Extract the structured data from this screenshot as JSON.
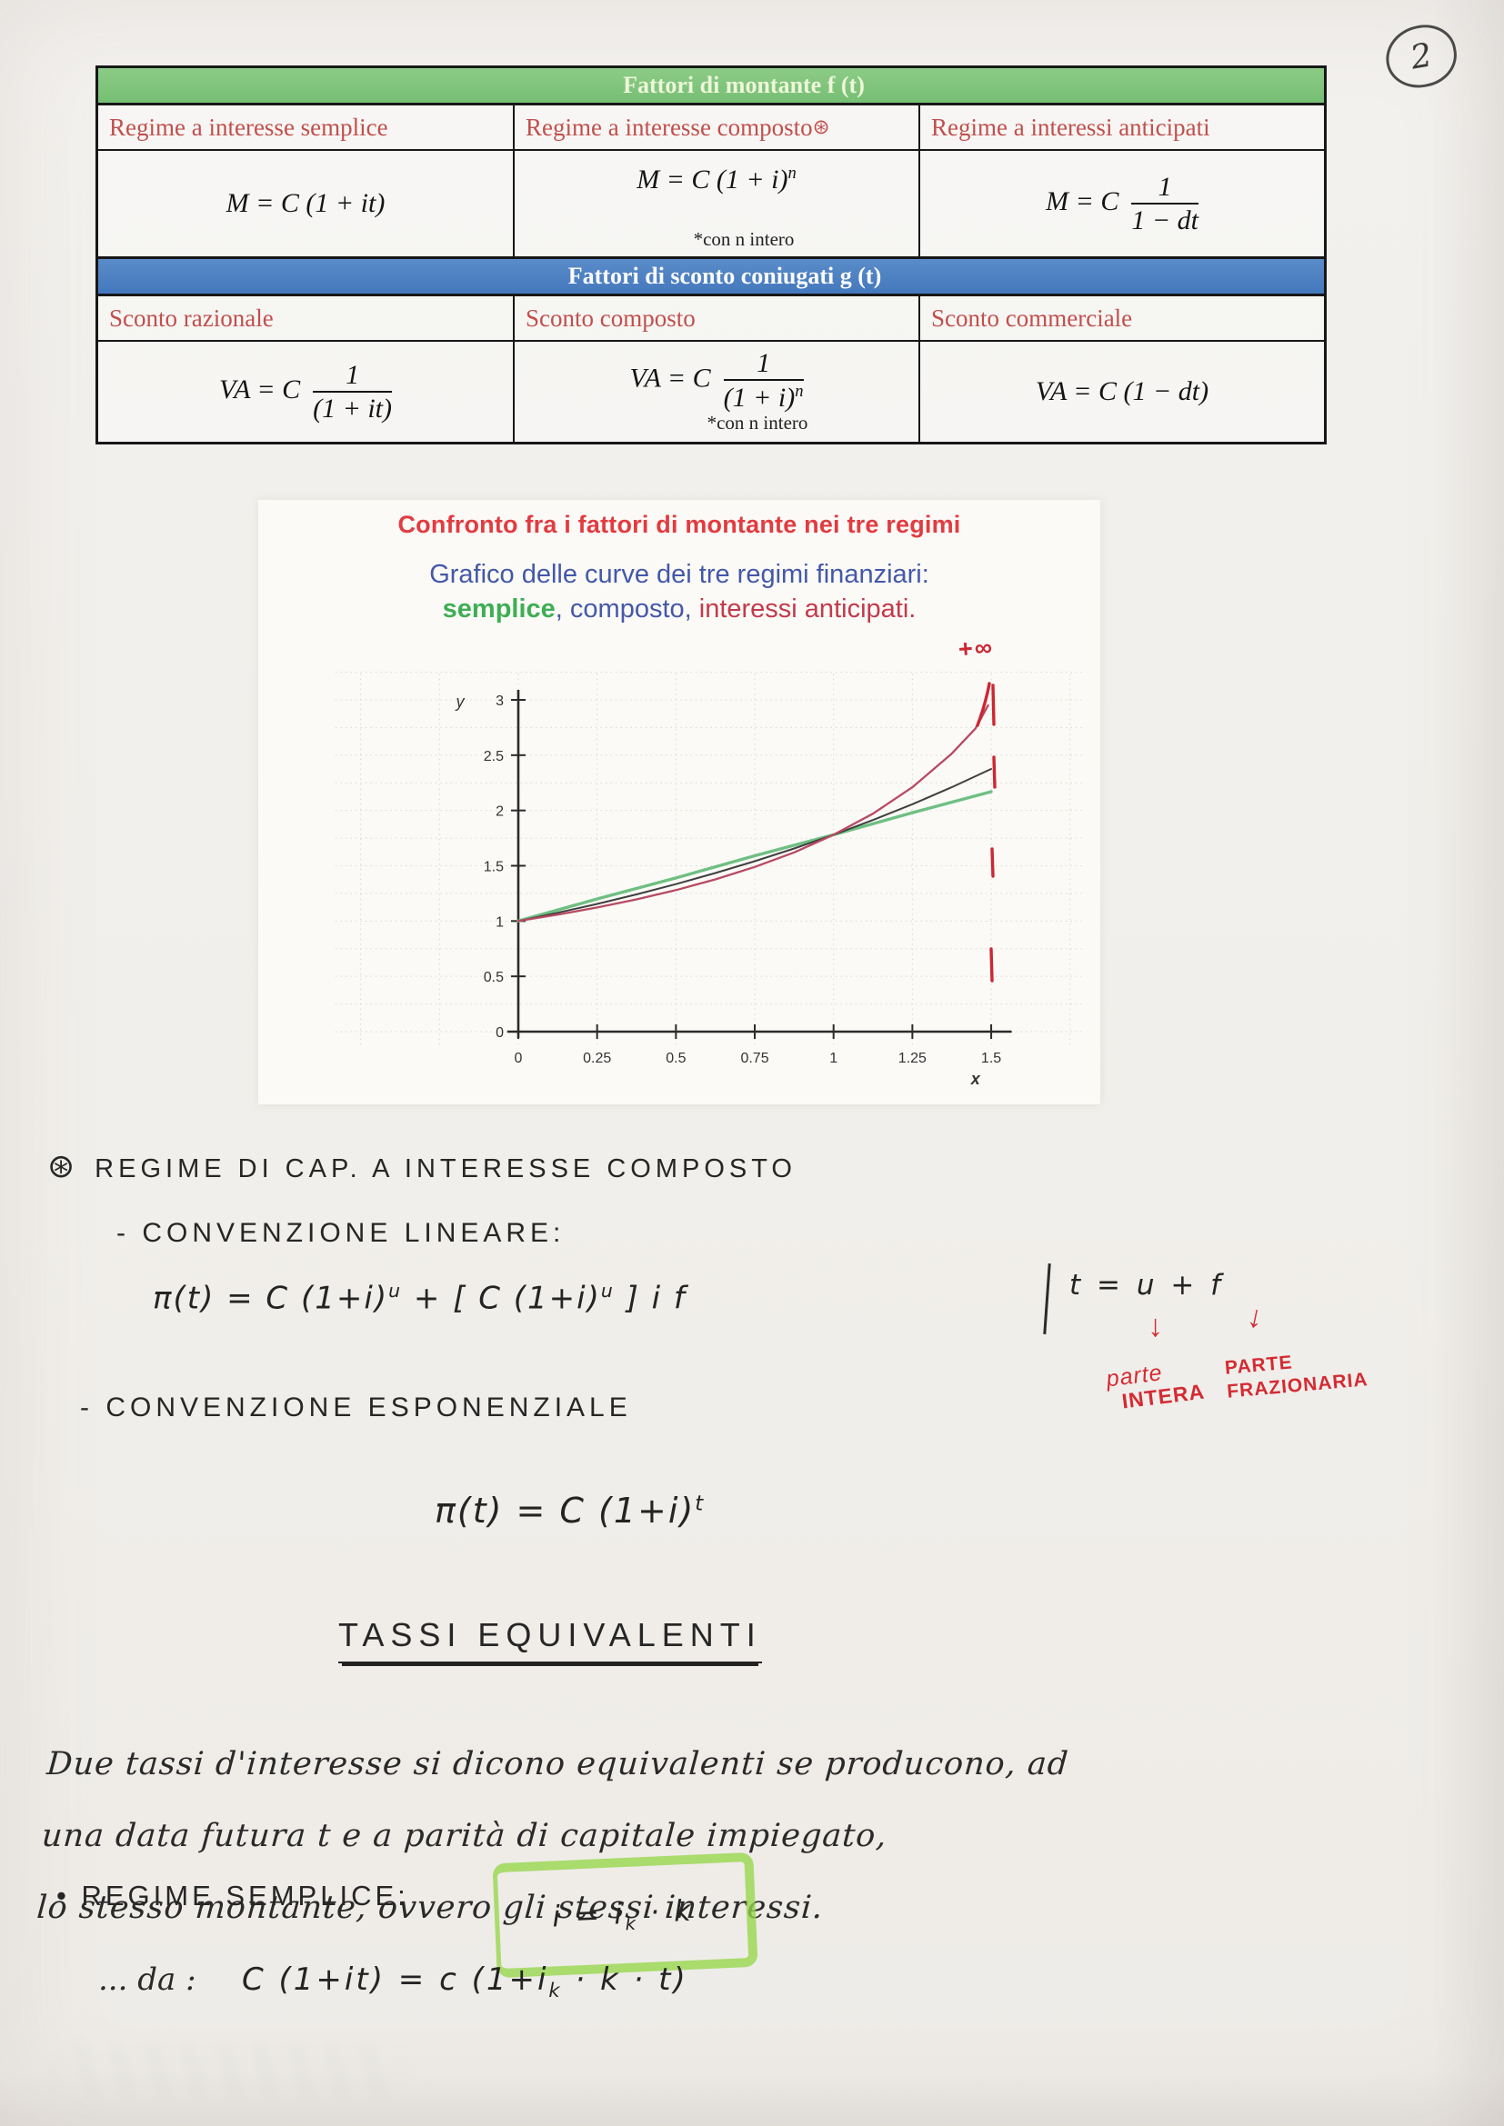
{
  "page": {
    "number": "2"
  },
  "table": {
    "montante_header": "Fattori di montante f (t)",
    "sconto_header": "Fattori di sconto coniugati g (t)",
    "montante_cols": [
      "Regime a interesse semplice",
      "Regime a interesse composto",
      "Regime a interessi anticipati"
    ],
    "montante_col2_mark": "⊛",
    "sconto_cols": [
      "Sconto razionale",
      "Sconto composto",
      "Sconto commerciale"
    ],
    "formulas": {
      "semplice": "M = C (1 + it)",
      "composto_base": "M = C (1 + i)",
      "composto_sup": "n",
      "composto_note": "*con n intero",
      "anticipati_pre": "M = C",
      "anticipati_num": "1",
      "anticipati_den": "1 − dt",
      "sconto_razionale_pre": "VA = C",
      "sconto_razionale_num": "1",
      "sconto_razionale_den": "(1 + it)",
      "sconto_composto_pre": "VA = C",
      "sconto_composto_num": "1",
      "sconto_composto_den_base": "(1 + i)",
      "sconto_composto_den_sup": "n",
      "sconto_composto_note": "*con n intero",
      "sconto_commerciale": "VA = C (1 − dt)"
    }
  },
  "chart_card": {
    "title": "Confronto fra i fattori di montante nei tre regimi",
    "subtitle_line1": "Grafico delle curve dei tre regimi finanziari:",
    "subtitle_semplice": "semplice",
    "subtitle_mid": ", composto, ",
    "subtitle_anticipati": "interessi anticipati.",
    "colors": {
      "title": "#e23b40",
      "subtitle": "#4458a8",
      "semplice": "#3fae53",
      "anticipati": "#c23a4a"
    }
  },
  "chart_data": {
    "type": "line",
    "title": "Confronto fra i fattori di montante nei tre regimi",
    "xlabel": "x",
    "ylabel": "y",
    "xlim": [
      0,
      1.5
    ],
    "ylim": [
      0,
      3
    ],
    "x_ticks": [
      0,
      0.25,
      0.5,
      0.75,
      1,
      1.25,
      1.5
    ],
    "y_ticks": [
      0,
      0.5,
      1,
      1.5,
      2,
      2.5,
      3
    ],
    "grid": true,
    "legend_position": "none",
    "annotation_infinity": "+∞",
    "series": [
      {
        "name": "semplice",
        "color": "#6fbf82",
        "width": 3.4,
        "x": [
          0,
          0.25,
          0.5,
          0.75,
          1,
          1.25,
          1.5
        ],
        "y": [
          1,
          1.2,
          1.39,
          1.59,
          1.78,
          1.98,
          2.17
        ]
      },
      {
        "name": "composto",
        "color": "#3f3f3f",
        "width": 2,
        "x": [
          0,
          0.125,
          0.25,
          0.375,
          0.5,
          0.625,
          0.75,
          0.875,
          1,
          1.125,
          1.25,
          1.375,
          1.5
        ],
        "y": [
          1,
          1.075,
          1.155,
          1.241,
          1.334,
          1.434,
          1.541,
          1.656,
          1.78,
          1.913,
          2.056,
          2.21,
          2.375
        ]
      },
      {
        "name": "interessi anticipati",
        "color": "#b84a63",
        "width": 2.3,
        "x": [
          0,
          0.125,
          0.25,
          0.375,
          0.5,
          0.625,
          0.75,
          0.875,
          1,
          1.125,
          1.25,
          1.375,
          1.45,
          1.49
        ],
        "y": [
          1,
          1.058,
          1.123,
          1.196,
          1.28,
          1.377,
          1.489,
          1.621,
          1.78,
          1.971,
          2.21,
          2.514,
          2.74,
          2.95
        ]
      }
    ]
  },
  "notes": {
    "marker": "⊛",
    "heading": "REGIME DI CAP. A INTERESSE COMPOSTO",
    "conv_lineare": "- CONVENZIONE LINEARE:",
    "formula_lineare_a": "π(t) = C (1+i)",
    "formula_lineare_a_sup": "u",
    "formula_lineare_b": " + [ C (1+i)",
    "formula_lineare_b_sup": "u",
    "formula_lineare_c": " ] i f",
    "side_eq": "t = u + f",
    "arrow_down": "↓",
    "side_left_1": "parte",
    "side_left_2": "INTERA",
    "side_right_1": "PARTE",
    "side_right_2": "FRAZIONARIA",
    "conv_esp": "- CONVENZIONE ESPONENZIALE",
    "formula_esp_base": "π(t) = C (1+i)",
    "formula_esp_sup": "t",
    "tassi_title": "TASSI EQUIVALENTI",
    "tassi_line1": "Due tassi d'interesse si dicono equivalenti se producono, ad",
    "tassi_line2": "una data futura t e a parità di capitale impiegato,",
    "tassi_line3": "lo stesso montante, ovvero gli stessi interessi.",
    "regime_bullet": "• REGIME SEMPLICE:",
    "regime_highlight_a": "i = i",
    "regime_highlight_sub": "k",
    "regime_highlight_b": " · k",
    "da_prefix": "... da :",
    "da_formula_a": "C (1+it) = c (1+i",
    "da_formula_sub": "k",
    "da_formula_b": " · k · t)"
  }
}
